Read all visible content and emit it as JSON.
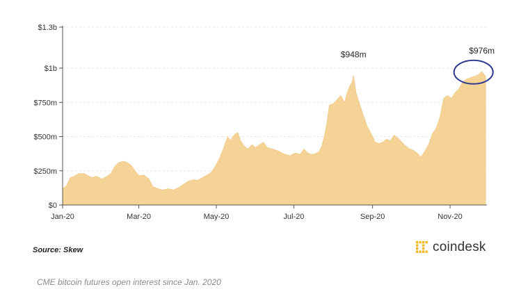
{
  "chart_data": {
    "type": "area",
    "title": "",
    "xlabel": "",
    "ylabel": "",
    "color": "#f5d296",
    "highlight_color": "#2b3990",
    "grid": true,
    "ylim": [
      0,
      1300000000
    ],
    "yticks": [
      {
        "value": 0,
        "label": "$0"
      },
      {
        "value": 250000000,
        "label": "$250m"
      },
      {
        "value": 500000000,
        "label": "$500m"
      },
      {
        "value": 750000000,
        "label": "$750m"
      },
      {
        "value": 1000000000,
        "label": "$1b"
      },
      {
        "value": 1300000000,
        "label": "$1.3b"
      }
    ],
    "xlim": [
      "2020-01-01",
      "2020-11-30"
    ],
    "xticks": [
      {
        "date": "2020-01-01",
        "label": "Jan-20"
      },
      {
        "date": "2020-03-01",
        "label": "Mar-20"
      },
      {
        "date": "2020-05-01",
        "label": "May-20"
      },
      {
        "date": "2020-07-01",
        "label": "Jul-20"
      },
      {
        "date": "2020-09-01",
        "label": "Sep-20"
      },
      {
        "date": "2020-11-01",
        "label": "Nov-20"
      }
    ],
    "series": [
      {
        "points": [
          [
            "2020-01-01",
            120000000
          ],
          [
            "2020-01-04",
            140000000
          ],
          [
            "2020-01-07",
            200000000
          ],
          [
            "2020-01-10",
            210000000
          ],
          [
            "2020-01-14",
            230000000
          ],
          [
            "2020-01-18",
            230000000
          ],
          [
            "2020-01-21",
            215000000
          ],
          [
            "2020-01-24",
            200000000
          ],
          [
            "2020-01-28",
            210000000
          ],
          [
            "2020-02-01",
            190000000
          ],
          [
            "2020-02-05",
            210000000
          ],
          [
            "2020-02-08",
            230000000
          ],
          [
            "2020-02-11",
            280000000
          ],
          [
            "2020-02-14",
            310000000
          ],
          [
            "2020-02-18",
            320000000
          ],
          [
            "2020-02-21",
            310000000
          ],
          [
            "2020-02-24",
            290000000
          ],
          [
            "2020-02-27",
            250000000
          ],
          [
            "2020-03-01",
            215000000
          ],
          [
            "2020-03-05",
            220000000
          ],
          [
            "2020-03-09",
            190000000
          ],
          [
            "2020-03-12",
            135000000
          ],
          [
            "2020-03-16",
            120000000
          ],
          [
            "2020-03-20",
            110000000
          ],
          [
            "2020-03-24",
            120000000
          ],
          [
            "2020-03-28",
            110000000
          ],
          [
            "2020-04-01",
            125000000
          ],
          [
            "2020-04-05",
            150000000
          ],
          [
            "2020-04-09",
            175000000
          ],
          [
            "2020-04-13",
            185000000
          ],
          [
            "2020-04-16",
            180000000
          ],
          [
            "2020-04-20",
            200000000
          ],
          [
            "2020-04-24",
            220000000
          ],
          [
            "2020-04-27",
            240000000
          ],
          [
            "2020-04-30",
            280000000
          ],
          [
            "2020-05-03",
            330000000
          ],
          [
            "2020-05-06",
            400000000
          ],
          [
            "2020-05-08",
            450000000
          ],
          [
            "2020-05-10",
            500000000
          ],
          [
            "2020-05-12",
            470000000
          ],
          [
            "2020-05-14",
            500000000
          ],
          [
            "2020-05-16",
            520000000
          ],
          [
            "2020-05-18",
            530000000
          ],
          [
            "2020-05-20",
            470000000
          ],
          [
            "2020-05-23",
            430000000
          ],
          [
            "2020-05-26",
            410000000
          ],
          [
            "2020-05-29",
            440000000
          ],
          [
            "2020-06-01",
            420000000
          ],
          [
            "2020-06-04",
            440000000
          ],
          [
            "2020-06-07",
            460000000
          ],
          [
            "2020-06-10",
            420000000
          ],
          [
            "2020-06-14",
            410000000
          ],
          [
            "2020-06-17",
            400000000
          ],
          [
            "2020-06-20",
            390000000
          ],
          [
            "2020-06-24",
            370000000
          ],
          [
            "2020-06-28",
            360000000
          ],
          [
            "2020-07-02",
            380000000
          ],
          [
            "2020-07-06",
            370000000
          ],
          [
            "2020-07-09",
            410000000
          ],
          [
            "2020-07-12",
            380000000
          ],
          [
            "2020-07-15",
            370000000
          ],
          [
            "2020-07-18",
            375000000
          ],
          [
            "2020-07-21",
            390000000
          ],
          [
            "2020-07-23",
            430000000
          ],
          [
            "2020-07-25",
            500000000
          ],
          [
            "2020-07-27",
            600000000
          ],
          [
            "2020-07-29",
            730000000
          ],
          [
            "2020-08-01",
            740000000
          ],
          [
            "2020-08-04",
            770000000
          ],
          [
            "2020-08-07",
            800000000
          ],
          [
            "2020-08-10",
            750000000
          ],
          [
            "2020-08-12",
            820000000
          ],
          [
            "2020-08-14",
            870000000
          ],
          [
            "2020-08-16",
            900000000
          ],
          [
            "2020-08-17",
            948000000
          ],
          [
            "2020-08-19",
            820000000
          ],
          [
            "2020-08-22",
            730000000
          ],
          [
            "2020-08-25",
            650000000
          ],
          [
            "2020-08-28",
            570000000
          ],
          [
            "2020-08-31",
            520000000
          ],
          [
            "2020-09-03",
            460000000
          ],
          [
            "2020-09-06",
            450000000
          ],
          [
            "2020-09-09",
            460000000
          ],
          [
            "2020-09-12",
            480000000
          ],
          [
            "2020-09-15",
            470000000
          ],
          [
            "2020-09-18",
            510000000
          ],
          [
            "2020-09-22",
            480000000
          ],
          [
            "2020-09-26",
            440000000
          ],
          [
            "2020-09-30",
            410000000
          ],
          [
            "2020-10-03",
            400000000
          ],
          [
            "2020-10-06",
            380000000
          ],
          [
            "2020-10-09",
            350000000
          ],
          [
            "2020-10-12",
            390000000
          ],
          [
            "2020-10-15",
            440000000
          ],
          [
            "2020-10-18",
            520000000
          ],
          [
            "2020-10-21",
            560000000
          ],
          [
            "2020-10-24",
            640000000
          ],
          [
            "2020-10-27",
            780000000
          ],
          [
            "2020-10-30",
            800000000
          ],
          [
            "2020-11-02",
            780000000
          ],
          [
            "2020-11-05",
            820000000
          ],
          [
            "2020-11-08",
            850000000
          ],
          [
            "2020-11-11",
            900000000
          ],
          [
            "2020-11-14",
            920000000
          ],
          [
            "2020-11-17",
            930000000
          ],
          [
            "2020-11-20",
            940000000
          ],
          [
            "2020-11-23",
            950000000
          ],
          [
            "2020-11-26",
            976000000
          ],
          [
            "2020-11-29",
            940000000
          ]
        ]
      }
    ],
    "annotations": [
      {
        "date": "2020-08-17",
        "value": 948000000,
        "label": "$948m"
      },
      {
        "date": "2020-11-26",
        "value": 976000000,
        "label": "$976m",
        "circled": true
      }
    ]
  },
  "footer": {
    "source": "Source: Skew",
    "brand": "coindesk",
    "brand_color": "#f5b820",
    "caption": "CME bitcoin futures open interest since Jan. 2020"
  }
}
